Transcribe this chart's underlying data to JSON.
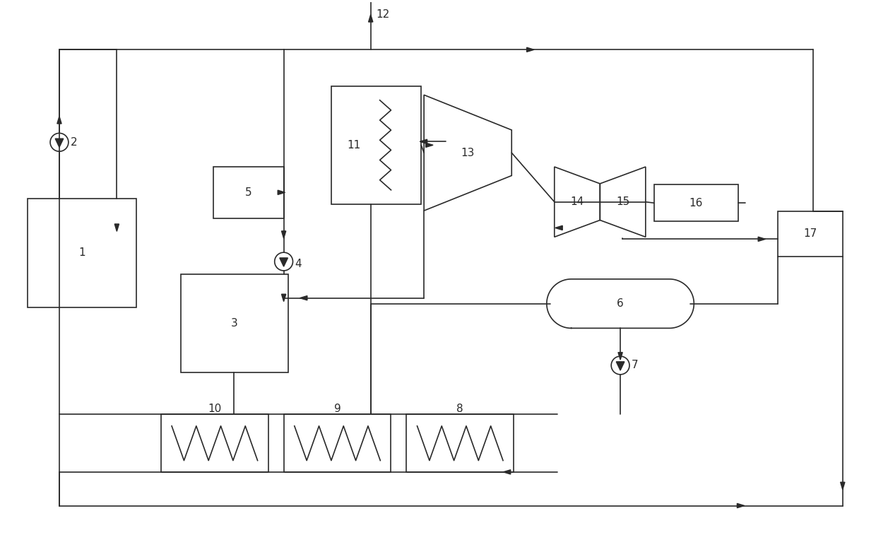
{
  "bg": "#ffffff",
  "lc": "#2a2a2a",
  "lw": 1.2,
  "fw": 12.4,
  "fh": 7.57,
  "dpi": 100
}
